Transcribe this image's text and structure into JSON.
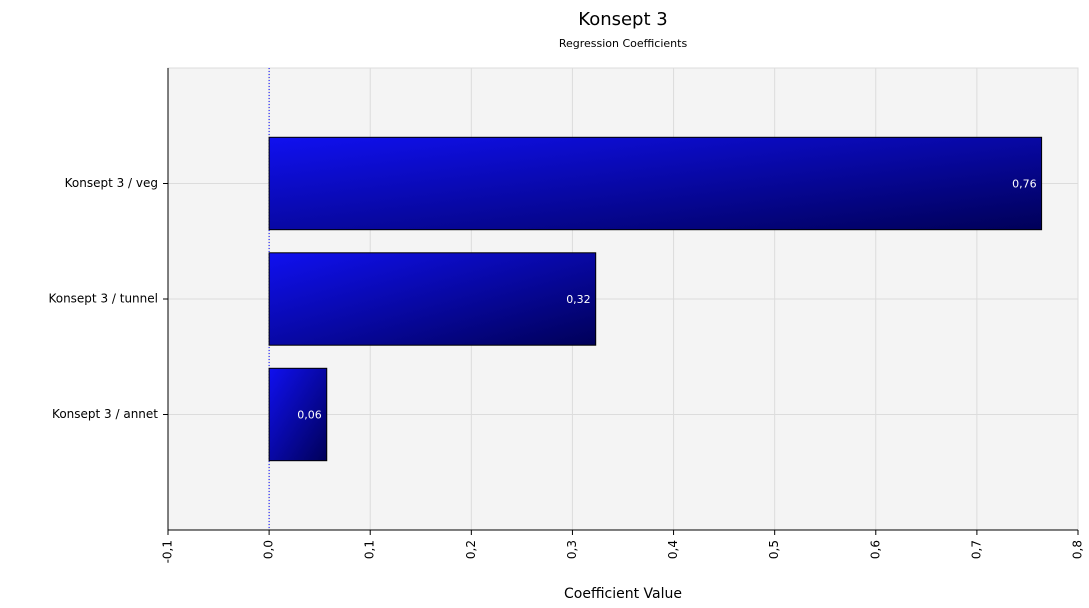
{
  "chart_data": {
    "type": "bar",
    "orientation": "horizontal",
    "title": "Konsept 3",
    "subtitle": "Regression Coefficients",
    "x_label": "Coefficient Value",
    "categories": [
      "Konsept 3 / veg",
      "Konsept 3 / tunnel",
      "Konsept 3 / annet"
    ],
    "values": [
      0.764,
      0.323,
      0.057
    ],
    "value_labels": [
      "0,76",
      "0,32",
      "0,06"
    ],
    "color": "#1010f0",
    "xlim": [
      -0.1,
      0.8
    ],
    "xticks": [
      {
        "value": -0.1,
        "label": "-0,1"
      },
      {
        "value": 0,
        "label": "0,0"
      },
      {
        "value": 0.1,
        "label": "0,1"
      },
      {
        "value": 0.2,
        "label": "0,2"
      },
      {
        "value": 0.3,
        "label": "0,3"
      },
      {
        "value": 0.4,
        "label": "0,4"
      },
      {
        "value": 0.5,
        "label": "0,5"
      },
      {
        "value": 0.6,
        "label": "0,6"
      },
      {
        "value": 0.7,
        "label": "0,7"
      },
      {
        "value": 0.8,
        "label": "0,8"
      }
    ],
    "grid": true
  }
}
